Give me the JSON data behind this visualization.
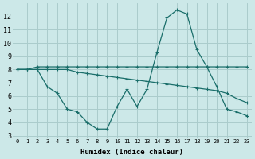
{
  "xlabel": "Humidex (Indice chaleur)",
  "bg_color": "#cce8e8",
  "line_color": "#1a6e6a",
  "grid_color": "#aacccc",
  "xlim_min": -0.5,
  "xlim_max": 23.5,
  "ylim_min": 2.8,
  "ylim_max": 13.0,
  "yticks": [
    3,
    4,
    5,
    6,
    7,
    8,
    9,
    10,
    11,
    12
  ],
  "xticks": [
    0,
    1,
    2,
    3,
    4,
    5,
    6,
    7,
    8,
    9,
    10,
    11,
    12,
    13,
    14,
    15,
    16,
    17,
    18,
    19,
    20,
    21,
    22,
    23
  ],
  "line1_x": [
    0,
    1,
    2,
    3,
    4,
    5,
    6,
    7,
    8,
    9,
    10,
    11,
    12,
    13,
    14,
    15,
    16,
    17,
    18,
    19,
    20,
    21,
    22,
    23
  ],
  "line1_y": [
    8,
    8,
    8,
    8,
    8,
    8,
    7.8,
    7.7,
    7.6,
    7.5,
    7.4,
    7.3,
    7.2,
    7.1,
    7.0,
    6.9,
    6.8,
    6.7,
    6.6,
    6.5,
    6.4,
    6.2,
    5.8,
    5.5
  ],
  "line2_x": [
    0,
    1,
    2,
    3,
    4,
    5,
    6,
    7,
    8,
    9,
    10,
    11,
    12,
    13,
    14,
    15,
    16,
    17,
    18,
    19,
    20,
    21,
    22,
    23
  ],
  "line2_y": [
    8,
    8,
    8.2,
    8.2,
    8.2,
    8.2,
    8.2,
    8.2,
    8.2,
    8.2,
    8.2,
    8.2,
    8.2,
    8.2,
    8.2,
    8.2,
    8.2,
    8.2,
    8.2,
    8.2,
    8.2,
    8.2,
    8.2,
    8.2
  ],
  "line3_x": [
    0,
    1,
    2,
    3,
    4,
    5,
    6,
    7,
    8,
    9,
    10,
    11,
    12,
    13,
    14,
    15,
    16,
    17,
    18,
    19,
    20,
    21,
    22,
    23
  ],
  "line3_y": [
    8,
    8,
    8,
    6.7,
    6.2,
    5.0,
    4.8,
    4.0,
    3.5,
    3.5,
    5.2,
    6.5,
    5.2,
    6.5,
    9.3,
    11.9,
    12.5,
    12.2,
    9.5,
    8.2,
    6.7,
    5.0,
    4.8,
    4.5
  ]
}
